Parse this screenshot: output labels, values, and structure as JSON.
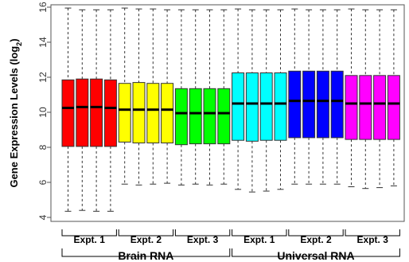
{
  "chart_data": {
    "type": "box",
    "ylabel": "Gene Expression Levels (log",
    "ylabel_subscript": "2",
    "ylabel_suffix": ")",
    "ylim": [
      4,
      16
    ],
    "yticks": [
      "4",
      "6",
      "8",
      "10",
      "12",
      "14",
      "16"
    ],
    "yticks_values": [
      4,
      6,
      8,
      10,
      12,
      14,
      16
    ],
    "grid": false,
    "groups": [
      {
        "label": "Expt. 1",
        "super": 0,
        "color": "#ff0000",
        "boxes": [
          {
            "q1": 8.05,
            "median": 10.25,
            "q3": 11.85,
            "min": 4.35,
            "max": 15.95
          },
          {
            "q1": 8.05,
            "median": 10.3,
            "q3": 11.9,
            "min": 4.4,
            "max": 15.85
          },
          {
            "q1": 8.05,
            "median": 10.3,
            "q3": 11.9,
            "min": 4.35,
            "max": 15.85
          },
          {
            "q1": 8.05,
            "median": 10.25,
            "q3": 11.85,
            "min": 4.35,
            "max": 15.85
          }
        ]
      },
      {
        "label": "Expt. 2",
        "super": 0,
        "color": "#ffff00",
        "boxes": [
          {
            "q1": 8.3,
            "median": 10.15,
            "q3": 11.65,
            "min": 5.9,
            "max": 15.95
          },
          {
            "q1": 8.25,
            "median": 10.15,
            "q3": 11.7,
            "min": 5.85,
            "max": 15.9
          },
          {
            "q1": 8.25,
            "median": 10.15,
            "q3": 11.65,
            "min": 5.9,
            "max": 15.9
          },
          {
            "q1": 8.25,
            "median": 10.15,
            "q3": 11.65,
            "min": 5.95,
            "max": 15.85
          }
        ]
      },
      {
        "label": "Expt. 3",
        "super": 0,
        "color": "#00ff00",
        "boxes": [
          {
            "q1": 8.15,
            "median": 9.95,
            "q3": 11.35,
            "min": 5.85,
            "max": 15.85
          },
          {
            "q1": 8.2,
            "median": 9.95,
            "q3": 11.35,
            "min": 5.9,
            "max": 15.85
          },
          {
            "q1": 8.2,
            "median": 9.95,
            "q3": 11.35,
            "min": 5.85,
            "max": 15.85
          },
          {
            "q1": 8.2,
            "median": 9.95,
            "q3": 11.35,
            "min": 5.9,
            "max": 15.85
          }
        ]
      },
      {
        "label": "Expt. 1",
        "super": 1,
        "color": "#00ffff",
        "boxes": [
          {
            "q1": 8.4,
            "median": 10.5,
            "q3": 12.25,
            "min": 5.6,
            "max": 15.9
          },
          {
            "q1": 8.35,
            "median": 10.5,
            "q3": 12.25,
            "min": 5.45,
            "max": 15.85
          },
          {
            "q1": 8.4,
            "median": 10.5,
            "q3": 12.25,
            "min": 5.5,
            "max": 15.85
          },
          {
            "q1": 8.4,
            "median": 10.5,
            "q3": 12.25,
            "min": 5.6,
            "max": 15.85
          }
        ]
      },
      {
        "label": "Expt. 2",
        "super": 1,
        "color": "#0000ff",
        "boxes": [
          {
            "q1": 8.55,
            "median": 10.65,
            "q3": 12.35,
            "min": 5.9,
            "max": 15.9
          },
          {
            "q1": 8.55,
            "median": 10.65,
            "q3": 12.35,
            "min": 5.9,
            "max": 15.85
          },
          {
            "q1": 8.55,
            "median": 10.65,
            "q3": 12.35,
            "min": 5.9,
            "max": 15.85
          },
          {
            "q1": 8.55,
            "median": 10.65,
            "q3": 12.35,
            "min": 5.9,
            "max": 15.85
          }
        ]
      },
      {
        "label": "Expt. 3",
        "super": 1,
        "color": "#ff00ff",
        "boxes": [
          {
            "q1": 8.45,
            "median": 10.5,
            "q3": 12.1,
            "min": 5.75,
            "max": 15.9
          },
          {
            "q1": 8.45,
            "median": 10.5,
            "q3": 12.1,
            "min": 5.65,
            "max": 15.85
          },
          {
            "q1": 8.45,
            "median": 10.5,
            "q3": 12.1,
            "min": 5.7,
            "max": 15.85
          },
          {
            "q1": 8.45,
            "median": 10.5,
            "q3": 12.1,
            "min": 5.8,
            "max": 15.85
          }
        ]
      }
    ],
    "super_groups": [
      "Brain RNA",
      "Universal RNA"
    ]
  }
}
